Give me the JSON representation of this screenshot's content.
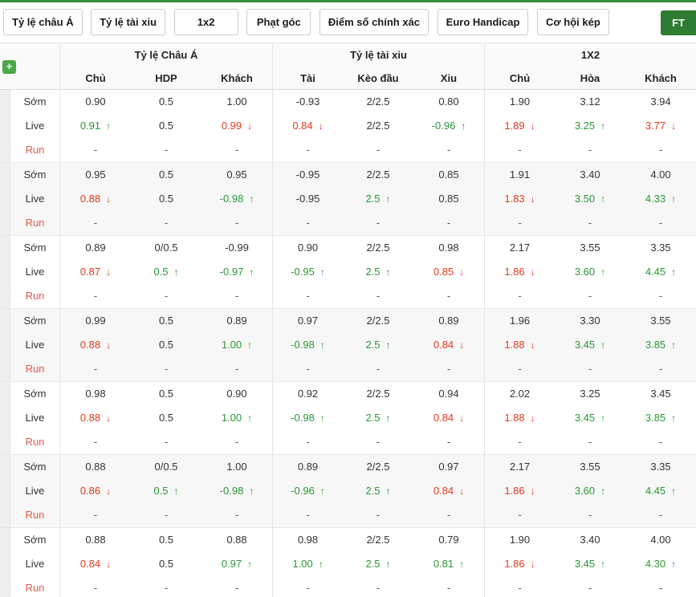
{
  "tabs": [
    {
      "label": "Tỷ lệ châu Á"
    },
    {
      "label": "Tỷ lệ tài xiu"
    },
    {
      "label": "1x2"
    },
    {
      "label": "Phạt góc"
    },
    {
      "label": "Điểm số chính xác"
    },
    {
      "label": "Euro Handicap"
    },
    {
      "label": "Cơ hội kép"
    }
  ],
  "ft_button": "FT",
  "add_button": "+",
  "colors": {
    "accent_green": "#2e7d32",
    "up_green": "#2a9635",
    "down_red": "#e2391b",
    "run_red": "#e05a4d"
  },
  "table": {
    "group_headers": [
      "Tỷ lệ Châu Á",
      "Tỷ lệ tài xiu",
      "1X2"
    ],
    "sub_headers": [
      "Chủ",
      "HDP",
      "Khách",
      "Tài",
      "Kèo đầu",
      "Xiu",
      "Chủ",
      "Hòa",
      "Khách"
    ],
    "matches": [
      {
        "rows": [
          {
            "label": "Sớm",
            "cells": [
              [
                "0.90",
                ""
              ],
              [
                "0.5",
                ""
              ],
              [
                "1.00",
                ""
              ],
              [
                "-0.93",
                ""
              ],
              [
                "2/2.5",
                ""
              ],
              [
                "0.80",
                ""
              ],
              [
                "1.90",
                ""
              ],
              [
                "3.12",
                ""
              ],
              [
                "3.94",
                ""
              ]
            ]
          },
          {
            "label": "Live",
            "cells": [
              [
                "0.91",
                "u"
              ],
              [
                "0.5",
                ""
              ],
              [
                "0.99",
                "d"
              ],
              [
                "0.84",
                "d"
              ],
              [
                "2/2.5",
                ""
              ],
              [
                "-0.96",
                "u"
              ],
              [
                "1.89",
                "d"
              ],
              [
                "3.25",
                "u"
              ],
              [
                "3.77",
                "d"
              ]
            ]
          },
          {
            "label": "Run",
            "cells": [
              [
                "-",
                ""
              ],
              [
                "-",
                ""
              ],
              [
                "-",
                ""
              ],
              [
                "-",
                ""
              ],
              [
                "-",
                ""
              ],
              [
                "-",
                ""
              ],
              [
                "-",
                ""
              ],
              [
                "-",
                ""
              ],
              [
                "-",
                ""
              ]
            ]
          }
        ]
      },
      {
        "rows": [
          {
            "label": "Sớm",
            "cells": [
              [
                "0.95",
                ""
              ],
              [
                "0.5",
                ""
              ],
              [
                "0.95",
                ""
              ],
              [
                "-0.95",
                ""
              ],
              [
                "2/2.5",
                ""
              ],
              [
                "0.85",
                ""
              ],
              [
                "1.91",
                ""
              ],
              [
                "3.40",
                ""
              ],
              [
                "4.00",
                ""
              ]
            ]
          },
          {
            "label": "Live",
            "cells": [
              [
                "0.88",
                "d"
              ],
              [
                "0.5",
                ""
              ],
              [
                "-0.98",
                "u"
              ],
              [
                "-0.95",
                ""
              ],
              [
                "2.5",
                "u"
              ],
              [
                "0.85",
                ""
              ],
              [
                "1.83",
                "d"
              ],
              [
                "3.50",
                "u"
              ],
              [
                "4.33",
                "u"
              ]
            ]
          },
          {
            "label": "Run",
            "cells": [
              [
                "-",
                ""
              ],
              [
                "-",
                ""
              ],
              [
                "-",
                ""
              ],
              [
                "-",
                ""
              ],
              [
                "-",
                ""
              ],
              [
                "-",
                ""
              ],
              [
                "-",
                ""
              ],
              [
                "-",
                ""
              ],
              [
                "-",
                ""
              ]
            ]
          }
        ]
      },
      {
        "rows": [
          {
            "label": "Sớm",
            "cells": [
              [
                "0.89",
                ""
              ],
              [
                "0/0.5",
                ""
              ],
              [
                "-0.99",
                ""
              ],
              [
                "0.90",
                ""
              ],
              [
                "2/2.5",
                ""
              ],
              [
                "0.98",
                ""
              ],
              [
                "2.17",
                ""
              ],
              [
                "3.55",
                ""
              ],
              [
                "3.35",
                ""
              ]
            ]
          },
          {
            "label": "Live",
            "cells": [
              [
                "0.87",
                "d"
              ],
              [
                "0.5",
                "u"
              ],
              [
                "-0.97",
                "u"
              ],
              [
                "-0.95",
                "u"
              ],
              [
                "2.5",
                "u"
              ],
              [
                "0.85",
                "d"
              ],
              [
                "1.86",
                "d"
              ],
              [
                "3.60",
                "u"
              ],
              [
                "4.45",
                "u"
              ]
            ]
          },
          {
            "label": "Run",
            "cells": [
              [
                "-",
                ""
              ],
              [
                "-",
                ""
              ],
              [
                "-",
                ""
              ],
              [
                "-",
                ""
              ],
              [
                "-",
                ""
              ],
              [
                "-",
                ""
              ],
              [
                "-",
                ""
              ],
              [
                "-",
                ""
              ],
              [
                "-",
                ""
              ]
            ]
          }
        ]
      },
      {
        "rows": [
          {
            "label": "Sớm",
            "cells": [
              [
                "0.99",
                ""
              ],
              [
                "0.5",
                ""
              ],
              [
                "0.89",
                ""
              ],
              [
                "0.97",
                ""
              ],
              [
                "2/2.5",
                ""
              ],
              [
                "0.89",
                ""
              ],
              [
                "1.96",
                ""
              ],
              [
                "3.30",
                ""
              ],
              [
                "3.55",
                ""
              ]
            ]
          },
          {
            "label": "Live",
            "cells": [
              [
                "0.88",
                "d"
              ],
              [
                "0.5",
                ""
              ],
              [
                "1.00",
                "u"
              ],
              [
                "-0.98",
                "u"
              ],
              [
                "2.5",
                "u"
              ],
              [
                "0.84",
                "d"
              ],
              [
                "1.88",
                "d"
              ],
              [
                "3.45",
                "u"
              ],
              [
                "3.85",
                "u"
              ]
            ]
          },
          {
            "label": "Run",
            "cells": [
              [
                "-",
                ""
              ],
              [
                "-",
                ""
              ],
              [
                "-",
                ""
              ],
              [
                "-",
                ""
              ],
              [
                "-",
                ""
              ],
              [
                "-",
                ""
              ],
              [
                "-",
                ""
              ],
              [
                "-",
                ""
              ],
              [
                "-",
                ""
              ]
            ]
          }
        ]
      },
      {
        "rows": [
          {
            "label": "Sớm",
            "cells": [
              [
                "0.98",
                ""
              ],
              [
                "0.5",
                ""
              ],
              [
                "0.90",
                ""
              ],
              [
                "0.92",
                ""
              ],
              [
                "2/2.5",
                ""
              ],
              [
                "0.94",
                ""
              ],
              [
                "2.02",
                ""
              ],
              [
                "3.25",
                ""
              ],
              [
                "3.45",
                ""
              ]
            ]
          },
          {
            "label": "Live",
            "cells": [
              [
                "0.88",
                "d"
              ],
              [
                "0.5",
                ""
              ],
              [
                "1.00",
                "u"
              ],
              [
                "-0.98",
                "u"
              ],
              [
                "2.5",
                "u"
              ],
              [
                "0.84",
                "d"
              ],
              [
                "1.88",
                "d"
              ],
              [
                "3.45",
                "u"
              ],
              [
                "3.85",
                "u"
              ]
            ]
          },
          {
            "label": "Run",
            "cells": [
              [
                "-",
                ""
              ],
              [
                "-",
                ""
              ],
              [
                "-",
                ""
              ],
              [
                "-",
                ""
              ],
              [
                "-",
                ""
              ],
              [
                "-",
                ""
              ],
              [
                "-",
                ""
              ],
              [
                "-",
                ""
              ],
              [
                "-",
                ""
              ]
            ]
          }
        ]
      },
      {
        "rows": [
          {
            "label": "Sớm",
            "cells": [
              [
                "0.88",
                ""
              ],
              [
                "0/0.5",
                ""
              ],
              [
                "1.00",
                ""
              ],
              [
                "0.89",
                ""
              ],
              [
                "2/2.5",
                ""
              ],
              [
                "0.97",
                ""
              ],
              [
                "2.17",
                ""
              ],
              [
                "3.55",
                ""
              ],
              [
                "3.35",
                ""
              ]
            ]
          },
          {
            "label": "Live",
            "cells": [
              [
                "0.86",
                "d"
              ],
              [
                "0.5",
                "u"
              ],
              [
                "-0.98",
                "u"
              ],
              [
                "-0.96",
                "u"
              ],
              [
                "2.5",
                "u"
              ],
              [
                "0.84",
                "d"
              ],
              [
                "1.86",
                "d"
              ],
              [
                "3.60",
                "u"
              ],
              [
                "4.45",
                "u"
              ]
            ]
          },
          {
            "label": "Run",
            "cells": [
              [
                "-",
                ""
              ],
              [
                "-",
                ""
              ],
              [
                "-",
                ""
              ],
              [
                "-",
                ""
              ],
              [
                "-",
                ""
              ],
              [
                "-",
                ""
              ],
              [
                "-",
                ""
              ],
              [
                "-",
                ""
              ],
              [
                "-",
                ""
              ]
            ]
          }
        ]
      },
      {
        "rows": [
          {
            "label": "Sớm",
            "cells": [
              [
                "0.88",
                ""
              ],
              [
                "0.5",
                ""
              ],
              [
                "0.88",
                ""
              ],
              [
                "0.98",
                ""
              ],
              [
                "2/2.5",
                ""
              ],
              [
                "0.79",
                ""
              ],
              [
                "1.90",
                ""
              ],
              [
                "3.40",
                ""
              ],
              [
                "4.00",
                ""
              ]
            ]
          },
          {
            "label": "Live",
            "cells": [
              [
                "0.84",
                "d"
              ],
              [
                "0.5",
                ""
              ],
              [
                "0.97",
                "u"
              ],
              [
                "1.00",
                "u"
              ],
              [
                "2.5",
                "u"
              ],
              [
                "0.81",
                "u"
              ],
              [
                "1.86",
                "d"
              ],
              [
                "3.45",
                "u"
              ],
              [
                "4.30",
                "u"
              ]
            ]
          },
          {
            "label": "Run",
            "cells": [
              [
                "-",
                ""
              ],
              [
                "-",
                ""
              ],
              [
                "-",
                ""
              ],
              [
                "-",
                ""
              ],
              [
                "-",
                ""
              ],
              [
                "-",
                ""
              ],
              [
                "-",
                ""
              ],
              [
                "-",
                ""
              ],
              [
                "-",
                ""
              ]
            ]
          }
        ]
      }
    ]
  }
}
